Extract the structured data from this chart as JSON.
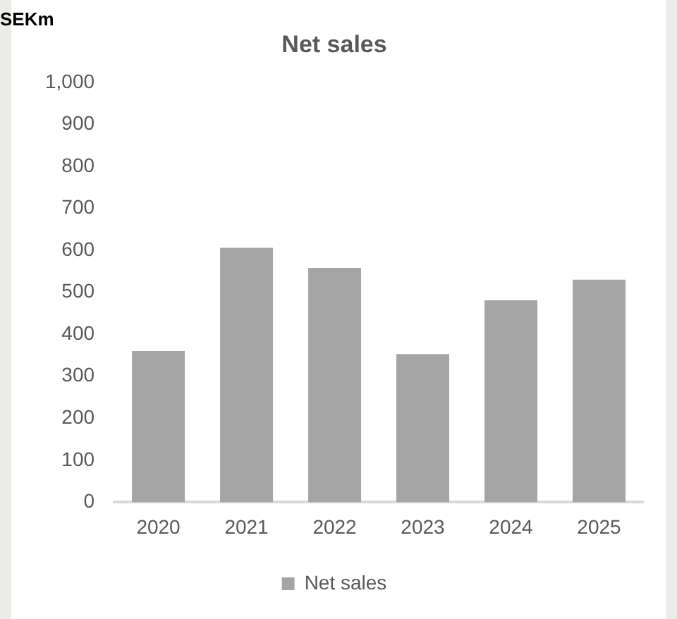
{
  "chart_data": {
    "type": "bar",
    "title": "Net sales",
    "ylabel": "SEKm",
    "categories": [
      "2020",
      "2021",
      "2022",
      "2023",
      "2024",
      "2025"
    ],
    "series": [
      {
        "name": "Net sales",
        "color": "#a5a5a5",
        "values": [
          360,
          606,
          558,
          353,
          481,
          530
        ]
      }
    ],
    "ylim": [
      0,
      1000
    ],
    "yticks": [
      0,
      100,
      200,
      300,
      400,
      500,
      600,
      700,
      800,
      900,
      {
        "value": 1000,
        "label": "1,000"
      }
    ],
    "grid": false,
    "legend": "bottom"
  }
}
